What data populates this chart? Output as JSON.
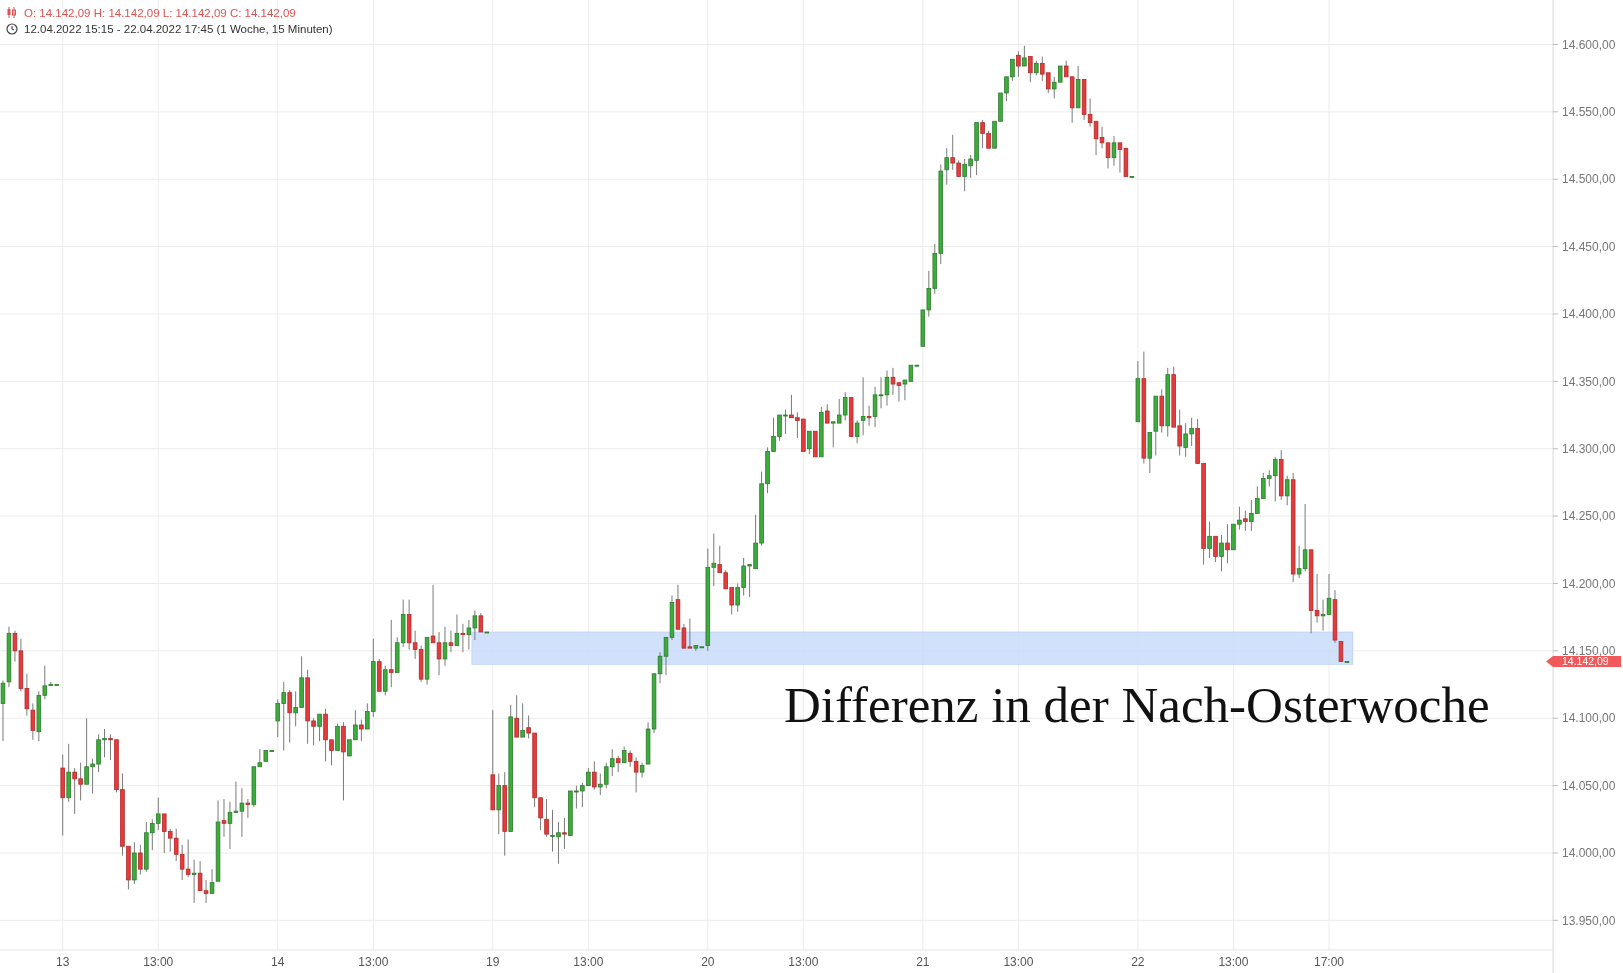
{
  "chart_data": {
    "type": "candlestick",
    "title": "O: 14.142,09  H: 14.142,09  L: 14.142,09  C: 14.142,09",
    "subtitle": "12.04.2022 15:15 - 22.04.2022 17:45   (1 Woche, 15 Minuten)",
    "annotations": [
      "Differenz in der Nach-Osterwoche",
      "14.142,09"
    ],
    "grid": true,
    "ylim": [
      13928,
      14633
    ],
    "yticks": [
      {
        "value": 13950,
        "label": "13.950,00"
      },
      {
        "value": 14000,
        "label": "14.000,00"
      },
      {
        "value": 14050,
        "label": "14.050,00"
      },
      {
        "value": 14100,
        "label": "14.100,00"
      },
      {
        "value": 14150,
        "label": "14.150,00"
      },
      {
        "value": 14200,
        "label": "14.200,00"
      },
      {
        "value": 14250,
        "label": "14.250,00"
      },
      {
        "value": 14300,
        "label": "14.300,00"
      },
      {
        "value": 14350,
        "label": "14.350,00"
      },
      {
        "value": 14400,
        "label": "14.400,00"
      },
      {
        "value": 14450,
        "label": "14.450,00"
      },
      {
        "value": 14500,
        "label": "14.500,00"
      },
      {
        "value": 14550,
        "label": "14.550,00"
      },
      {
        "value": 14600,
        "label": "14.600,00"
      }
    ],
    "bands": [
      {
        "axis": "y",
        "from": 14140,
        "to": 14164,
        "color": "#c9dcfb"
      }
    ],
    "categories": [
      null,
      null,
      null,
      null,
      null,
      null,
      null,
      null,
      null,
      null,
      "13",
      null,
      null,
      null,
      null,
      null,
      null,
      null,
      null,
      null,
      null,
      null,
      null,
      null,
      null,
      null,
      "13:00",
      null,
      null,
      null,
      null,
      null,
      null,
      null,
      null,
      null,
      null,
      null,
      null,
      null,
      null,
      null,
      null,
      null,
      null,
      null,
      "14",
      null,
      null,
      null,
      null,
      null,
      null,
      null,
      null,
      null,
      null,
      null,
      null,
      null,
      null,
      null,
      "13:00",
      null,
      null,
      null,
      null,
      null,
      null,
      null,
      null,
      null,
      null,
      null,
      null,
      null,
      null,
      null,
      null,
      null,
      null,
      null,
      "19",
      null,
      null,
      null,
      null,
      null,
      null,
      null,
      null,
      null,
      null,
      null,
      null,
      null,
      null,
      null,
      "13:00",
      null,
      null,
      null,
      null,
      null,
      null,
      null,
      null,
      null,
      null,
      null,
      null,
      null,
      null,
      null,
      null,
      null,
      null,
      null,
      "20",
      null,
      null,
      null,
      null,
      null,
      null,
      null,
      null,
      null,
      null,
      null,
      null,
      null,
      null,
      null,
      "13:00",
      null,
      null,
      null,
      null,
      null,
      null,
      null,
      null,
      null,
      null,
      null,
      null,
      null,
      null,
      null,
      null,
      null,
      null,
      null,
      "21",
      null,
      null,
      null,
      null,
      null,
      null,
      null,
      null,
      null,
      null,
      null,
      null,
      null,
      null,
      null,
      "13:00",
      null,
      null,
      null,
      null,
      null,
      null,
      null,
      null,
      null,
      null,
      null,
      null,
      null,
      null,
      null,
      null,
      null,
      null,
      null,
      "22",
      null,
      null,
      null,
      null,
      null,
      null,
      null,
      null,
      null,
      null,
      null,
      null,
      null,
      null,
      null,
      "13:00",
      null,
      null,
      null,
      null,
      null,
      null,
      null,
      null,
      null,
      null,
      null,
      null,
      null,
      null,
      null,
      "17:00",
      null,
      null,
      null,
      null,
      null,
      null,
      null,
      null,
      null,
      null,
      null,
      null,
      null,
      null,
      null,
      null,
      null,
      null,
      null,
      null,
      null,
      null,
      null,
      null,
      null,
      null,
      null,
      null,
      null,
      null,
      null,
      null,
      null,
      null,
      null,
      null,
      null
    ],
    "ohlc": [
      [
        14111,
        14128,
        14083,
        14126
      ],
      [
        14127,
        14168,
        14123,
        14163
      ],
      [
        14163,
        14165,
        14142,
        14150
      ],
      [
        14150,
        14159,
        14120,
        14122
      ],
      [
        14122,
        14133,
        14102,
        14107
      ],
      [
        14106,
        14111,
        14084,
        14091
      ],
      [
        14090,
        14120,
        14083,
        14117
      ],
      [
        14117,
        14139,
        14114,
        14124
      ],
      [
        14125,
        14127,
        14124,
        14125
      ],
      [
        14125,
        14126,
        14125,
        14125
      ],
      [
        14063,
        14073,
        14013,
        14041
      ],
      [
        14041,
        14081,
        14038,
        14060
      ],
      [
        14060,
        14063,
        14029,
        14055
      ],
      [
        14055,
        14067,
        14039,
        14051
      ],
      [
        14051,
        14100,
        14050,
        14064
      ],
      [
        14064,
        14070,
        14044,
        14066
      ],
      [
        14066,
        14088,
        14060,
        14084
      ],
      [
        14084,
        14092,
        14071,
        14085
      ],
      [
        14085,
        14088,
        14069,
        14084
      ],
      [
        14084,
        14084,
        14045,
        14047
      ],
      [
        14047,
        14059,
        13998,
        14005
      ],
      [
        14005,
        14006,
        13973,
        13980
      ],
      [
        13980,
        14008,
        13977,
        14000
      ],
      [
        14000,
        14006,
        13984,
        13988
      ],
      [
        13988,
        14023,
        13986,
        14015
      ],
      [
        14015,
        14025,
        14002,
        14022
      ],
      [
        14022,
        14041,
        14017,
        14029
      ],
      [
        14029,
        14030,
        14000,
        14016
      ],
      [
        14016,
        14018,
        14001,
        14011
      ],
      [
        14011,
        14018,
        13994,
        13999
      ],
      [
        13999,
        14006,
        13980,
        13988
      ],
      [
        13988,
        14010,
        13982,
        13984
      ],
      [
        13984,
        13995,
        13963,
        13985
      ],
      [
        13985,
        13994,
        13971,
        13972
      ],
      [
        13972,
        13980,
        13963,
        13970
      ],
      [
        13970,
        13988,
        13970,
        13978
      ],
      [
        13979,
        14039,
        13979,
        14023
      ],
      [
        14024,
        14040,
        14012,
        14022
      ],
      [
        14022,
        14038,
        14003,
        14030
      ],
      [
        14030,
        14053,
        14029,
        14031
      ],
      [
        14031,
        14048,
        14012,
        14037
      ],
      [
        14037,
        14040,
        14026,
        14036
      ],
      [
        14036,
        14065,
        14034,
        14064
      ],
      [
        14064,
        14077,
        14063,
        14067
      ],
      [
        14068,
        14077,
        14067,
        14076
      ],
      [
        14076,
        14076,
        14076,
        14076
      ],
      [
        14098,
        14114,
        14086,
        14111
      ],
      [
        14111,
        14127,
        14076,
        14119
      ],
      [
        14119,
        14121,
        14082,
        14104
      ],
      [
        14104,
        14120,
        14094,
        14108
      ],
      [
        14108,
        14146,
        14107,
        14130
      ],
      [
        14130,
        14136,
        14081,
        14098
      ],
      [
        14098,
        14100,
        14080,
        14094
      ],
      [
        14094,
        14104,
        14083,
        14103
      ],
      [
        14103,
        14107,
        14068,
        14084
      ],
      [
        14084,
        14084,
        14065,
        14076
      ],
      [
        14076,
        14096,
        14076,
        14094
      ],
      [
        14094,
        14097,
        14039,
        14075
      ],
      [
        14072,
        14084,
        14071,
        14084
      ],
      [
        14084,
        14106,
        14083,
        14095
      ],
      [
        14095,
        14099,
        14083,
        14092
      ],
      [
        14092,
        14111,
        14091,
        14105
      ],
      [
        14105,
        14159,
        14101,
        14142
      ],
      [
        14142,
        14144,
        14119,
        14120
      ],
      [
        14120,
        14139,
        14117,
        14136
      ],
      [
        14136,
        14173,
        14123,
        14134
      ],
      [
        14134,
        14160,
        14133,
        14156
      ],
      [
        14156,
        14188,
        14153,
        14177
      ],
      [
        14177,
        14188,
        14151,
        14156
      ],
      [
        14156,
        14165,
        14144,
        14151
      ],
      [
        14151,
        14154,
        14127,
        14129
      ],
      [
        14129,
        14161,
        14125,
        14160
      ],
      [
        14161,
        14199,
        14155,
        14156
      ],
      [
        14156,
        14164,
        14132,
        14144
      ],
      [
        14144,
        14168,
        14139,
        14156
      ],
      [
        14156,
        14165,
        14149,
        14154
      ],
      [
        14154,
        14177,
        14154,
        14163
      ],
      [
        14163,
        14170,
        14149,
        14162
      ],
      [
        14162,
        14173,
        14151,
        14167
      ],
      [
        14167,
        14180,
        14158,
        14176
      ],
      [
        14176,
        14178,
        14163,
        14164
      ],
      [
        14164,
        14164,
        14164,
        14164
      ],
      [
        14058,
        14106,
        14031,
        14032
      ],
      [
        14032,
        14059,
        14014,
        14050
      ],
      [
        14050,
        14060,
        13998,
        14016
      ],
      [
        14016,
        14110,
        14015,
        14101
      ],
      [
        14100,
        14117,
        14085,
        14086
      ],
      [
        14086,
        14111,
        14086,
        14091
      ],
      [
        14093,
        14102,
        14085,
        14089
      ],
      [
        14089,
        14089,
        14034,
        14041
      ],
      [
        14041,
        14042,
        14017,
        14026
      ],
      [
        14025,
        14040,
        14012,
        14014
      ],
      [
        14013,
        14032,
        14001,
        14013
      ],
      [
        14012,
        14023,
        13992,
        14015
      ],
      [
        14015,
        14026,
        14003,
        14014
      ],
      [
        14013,
        14047,
        14013,
        14046
      ],
      [
        14046,
        14050,
        14033,
        14046
      ],
      [
        14046,
        14052,
        14034,
        14050
      ],
      [
        14050,
        14063,
        14049,
        14060
      ],
      [
        14060,
        14068,
        14047,
        14049
      ],
      [
        14049,
        14059,
        14043,
        14051
      ],
      [
        14051,
        14067,
        14048,
        14064
      ],
      [
        14064,
        14077,
        14057,
        14070
      ],
      [
        14070,
        14072,
        14060,
        14067
      ],
      [
        14067,
        14079,
        14066,
        14076
      ],
      [
        14074,
        14076,
        14064,
        14068
      ],
      [
        14068,
        14071,
        14045,
        14060
      ],
      [
        14060,
        14067,
        14056,
        14065
      ],
      [
        14066,
        14097,
        14066,
        14092
      ],
      [
        14092,
        14133,
        14089,
        14133
      ],
      [
        14133,
        14149,
        14126,
        14146
      ],
      [
        14146,
        14161,
        14132,
        14160
      ],
      [
        14160,
        14191,
        14158,
        14186
      ],
      [
        14188,
        14199,
        14165,
        14166
      ],
      [
        14167,
        14170,
        14152,
        14152
      ],
      [
        14153,
        14174,
        14151,
        14152
      ],
      [
        14152,
        14154,
        14150,
        14154
      ],
      [
        14153,
        14153,
        14153,
        14153
      ],
      [
        14154,
        14226,
        14150,
        14212
      ],
      [
        14212,
        14237,
        14198,
        14215
      ],
      [
        14214,
        14228,
        14207,
        14208
      ],
      [
        14208,
        14210,
        14196,
        14196
      ],
      [
        14197,
        14198,
        14177,
        14184
      ],
      [
        14184,
        14200,
        14179,
        14197
      ],
      [
        14197,
        14219,
        14191,
        14213
      ],
      [
        14213,
        14215,
        14190,
        14214
      ],
      [
        14211,
        14251,
        14210,
        14230
      ],
      [
        14230,
        14283,
        14228,
        14274
      ],
      [
        14274,
        14301,
        14267,
        14298
      ],
      [
        14298,
        14323,
        14298,
        14309
      ],
      [
        14309,
        14326,
        14306,
        14325
      ],
      [
        14325,
        14329,
        14311,
        14325
      ],
      [
        14325,
        14340,
        14322,
        14323
      ],
      [
        14323,
        14327,
        14308,
        14321
      ],
      [
        14322,
        14322,
        14298,
        14298
      ],
      [
        14300,
        14313,
        14296,
        14313
      ],
      [
        14313,
        14313,
        14293,
        14294
      ],
      [
        14294,
        14331,
        14293,
        14327
      ],
      [
        14328,
        14333,
        14319,
        14319
      ],
      [
        14319,
        14321,
        14301,
        14320
      ],
      [
        14319,
        14337,
        14319,
        14325
      ],
      [
        14325,
        14342,
        14321,
        14338
      ],
      [
        14338,
        14339,
        14308,
        14309
      ],
      [
        14309,
        14321,
        14304,
        14319
      ],
      [
        14321,
        14353,
        14310,
        14324
      ],
      [
        14324,
        14332,
        14317,
        14323
      ],
      [
        14324,
        14346,
        14316,
        14340
      ],
      [
        14340,
        14353,
        14330,
        14340
      ],
      [
        14340,
        14358,
        14332,
        14353
      ],
      [
        14353,
        14360,
        14340,
        14348
      ],
      [
        14349,
        14350,
        14335,
        14347
      ],
      [
        14348,
        14352,
        14336,
        14351
      ],
      [
        14350,
        14362,
        14349,
        14362
      ],
      [
        14362,
        14362,
        14362,
        14362
      ],
      [
        14376,
        14404,
        14376,
        14403
      ],
      [
        14403,
        14432,
        14398,
        14419
      ],
      [
        14419,
        14452,
        14415,
        14445
      ],
      [
        14445,
        14511,
        14437,
        14506
      ],
      [
        14507,
        14523,
        14496,
        14516
      ],
      [
        14516,
        14533,
        14507,
        14512
      ],
      [
        14512,
        14514,
        14501,
        14502
      ],
      [
        14502,
        14515,
        14491,
        14511
      ],
      [
        14510,
        14518,
        14501,
        14515
      ],
      [
        14514,
        14543,
        14503,
        14542
      ],
      [
        14542,
        14544,
        14523,
        14534
      ],
      [
        14534,
        14536,
        14522,
        14523
      ],
      [
        14523,
        14544,
        14522,
        14543
      ],
      [
        14543,
        14565,
        14543,
        14564
      ],
      [
        14564,
        14577,
        14558,
        14576
      ],
      [
        14576,
        14590,
        14573,
        14589
      ],
      [
        14592,
        14595,
        14576,
        14584
      ],
      [
        14584,
        14599,
        14583,
        14590
      ],
      [
        14591,
        14591,
        14572,
        14579
      ],
      [
        14579,
        14588,
        14577,
        14586
      ],
      [
        14586,
        14591,
        14573,
        14578
      ],
      [
        14579,
        14580,
        14564,
        14567
      ],
      [
        14567,
        14576,
        14560,
        14572
      ],
      [
        14572,
        14585,
        14572,
        14584
      ],
      [
        14584,
        14588,
        14575,
        14576
      ],
      [
        14576,
        14577,
        14542,
        14553
      ],
      [
        14553,
        14584,
        14553,
        14574
      ],
      [
        14574,
        14574,
        14544,
        14548
      ],
      [
        14548,
        14560,
        14539,
        14542
      ],
      [
        14543,
        14543,
        14518,
        14530
      ],
      [
        14531,
        14539,
        14523,
        14527
      ],
      [
        14527,
        14527,
        14508,
        14516
      ],
      [
        14516,
        14532,
        14510,
        14527
      ],
      [
        14527,
        14527,
        14505,
        14522
      ],
      [
        14523,
        14523,
        14502,
        14502
      ],
      [
        14502,
        14502,
        14502,
        14502
      ],
      [
        14320,
        14365,
        14319,
        14352
      ],
      [
        14352,
        14372,
        14289,
        14293
      ],
      [
        14293,
        14313,
        14282,
        14312
      ],
      [
        14313,
        14340,
        14295,
        14339
      ],
      [
        14339,
        14344,
        14312,
        14317
      ],
      [
        14317,
        14360,
        14309,
        14355
      ],
      [
        14355,
        14361,
        14315,
        14316
      ],
      [
        14317,
        14329,
        14295,
        14302
      ],
      [
        14301,
        14319,
        14294,
        14311
      ],
      [
        14311,
        14323,
        14302,
        14315
      ],
      [
        14315,
        14322,
        14288,
        14289
      ],
      [
        14289,
        14290,
        14214,
        14226
      ],
      [
        14226,
        14246,
        14219,
        14235
      ],
      [
        14235,
        14236,
        14216,
        14220
      ],
      [
        14220,
        14236,
        14209,
        14230
      ],
      [
        14230,
        14244,
        14215,
        14225
      ],
      [
        14225,
        14245,
        14224,
        14244
      ],
      [
        14244,
        14257,
        14240,
        14247
      ],
      [
        14248,
        14254,
        14239,
        14246
      ],
      [
        14246,
        14262,
        14239,
        14252
      ],
      [
        14252,
        14272,
        14251,
        14263
      ],
      [
        14263,
        14282,
        14263,
        14278
      ],
      [
        14278,
        14284,
        14272,
        14280
      ],
      [
        14280,
        14294,
        14261,
        14292
      ],
      [
        14292,
        14299,
        14262,
        14265
      ],
      [
        14265,
        14280,
        14258,
        14277
      ],
      [
        14277,
        14282,
        14201,
        14207
      ],
      [
        14207,
        14228,
        14204,
        14211
      ],
      [
        14211,
        14259,
        14209,
        14225
      ],
      [
        14225,
        14226,
        14163,
        14180
      ],
      [
        14180,
        14207,
        14171,
        14176
      ],
      [
        14176,
        14188,
        14165,
        14177
      ],
      [
        14177,
        14207,
        14176,
        14189
      ],
      [
        14188,
        14195,
        14156,
        14158
      ],
      [
        14157,
        14157,
        14142,
        14142.09
      ],
      [
        14142.09,
        14142.09,
        14142.09,
        14142.09
      ],
      null,
      null,
      null,
      null,
      null,
      null,
      null,
      null,
      null,
      null,
      null,
      null,
      null,
      null,
      null,
      null,
      null,
      null,
      null,
      null,
      null,
      null,
      null,
      null,
      null,
      null,
      null,
      null,
      null,
      null,
      null,
      null,
      null,
      null
    ]
  }
}
